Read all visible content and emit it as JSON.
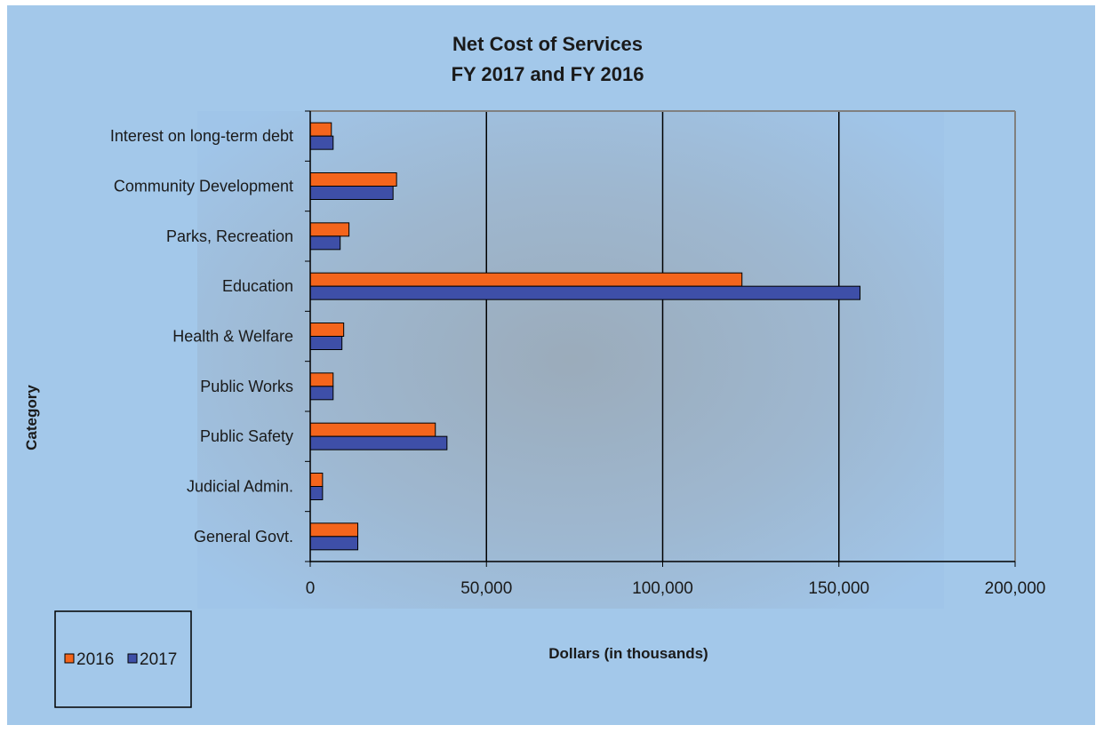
{
  "chart_data": {
    "type": "bar",
    "orientation": "horizontal",
    "title": "Net Cost of Services",
    "subtitle": "FY 2017 and FY 2016",
    "xlabel": "Dollars (in thousands)",
    "ylabel": "Category",
    "xlim": [
      0,
      200000
    ],
    "x_ticks": [
      "0",
      "50,000",
      "100,000",
      "150,000",
      "200,000"
    ],
    "x_tick_values": [
      0,
      50000,
      100000,
      150000,
      200000
    ],
    "grid": "vertical",
    "legend_position": "bottom-left",
    "categories": [
      "General Govt.",
      "Judicial Admin.",
      "Public Safety",
      "Public Works",
      "Health & Welfare",
      "Education",
      "Parks, Recreation",
      "Community Development",
      "Interest on long-term debt"
    ],
    "series": [
      {
        "name": "2016",
        "color": "#f4651c",
        "values": [
          13500,
          3500,
          35500,
          6500,
          9500,
          122500,
          11000,
          24500,
          6000
        ]
      },
      {
        "name": "2017",
        "color": "#3e4fa8",
        "values": [
          13500,
          3500,
          38800,
          6500,
          9000,
          156000,
          8500,
          23500,
          6500
        ]
      }
    ],
    "colors": {
      "page_background": "#a3c8ea",
      "plot_center": "#949494",
      "plot_edge": "#9ec3e8",
      "grid_line": "#000000",
      "frame": "#808080"
    }
  }
}
